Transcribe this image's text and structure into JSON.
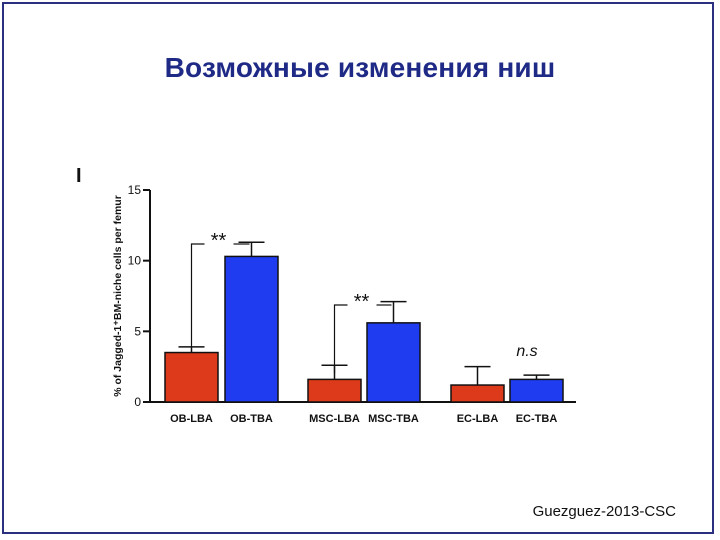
{
  "slide": {
    "title": "Возможные изменения ниш",
    "credit": "Guezguez-2013-CSC"
  },
  "chart_data": {
    "type": "bar",
    "panel_label": "I",
    "ylabel": "% of Jagged-1⁺BM-niche cells per femur",
    "ylim": [
      0,
      15
    ],
    "yticks": [
      "0",
      "5",
      "10",
      "15"
    ],
    "categories": [
      "OB-LBA",
      "OB-TBA",
      "MSC-LBA",
      "MSC-TBA",
      "EC-LBA",
      "EC-TBA"
    ],
    "values": [
      3.5,
      10.3,
      1.6,
      5.6,
      1.2,
      1.6
    ],
    "errors": [
      0.4,
      1.0,
      1.0,
      1.5,
      1.3,
      0.3
    ],
    "colors": [
      "#dc3a1a",
      "#1f3cf0",
      "#dc3a1a",
      "#1f3cf0",
      "#dc3a1a",
      "#1f3cf0"
    ],
    "significance": [
      {
        "pair": [
          0,
          1
        ],
        "label": "**"
      },
      {
        "pair": [
          2,
          3
        ],
        "label": "**"
      },
      {
        "pair": [
          4,
          5
        ],
        "label": "n.s"
      }
    ],
    "grid": false
  }
}
